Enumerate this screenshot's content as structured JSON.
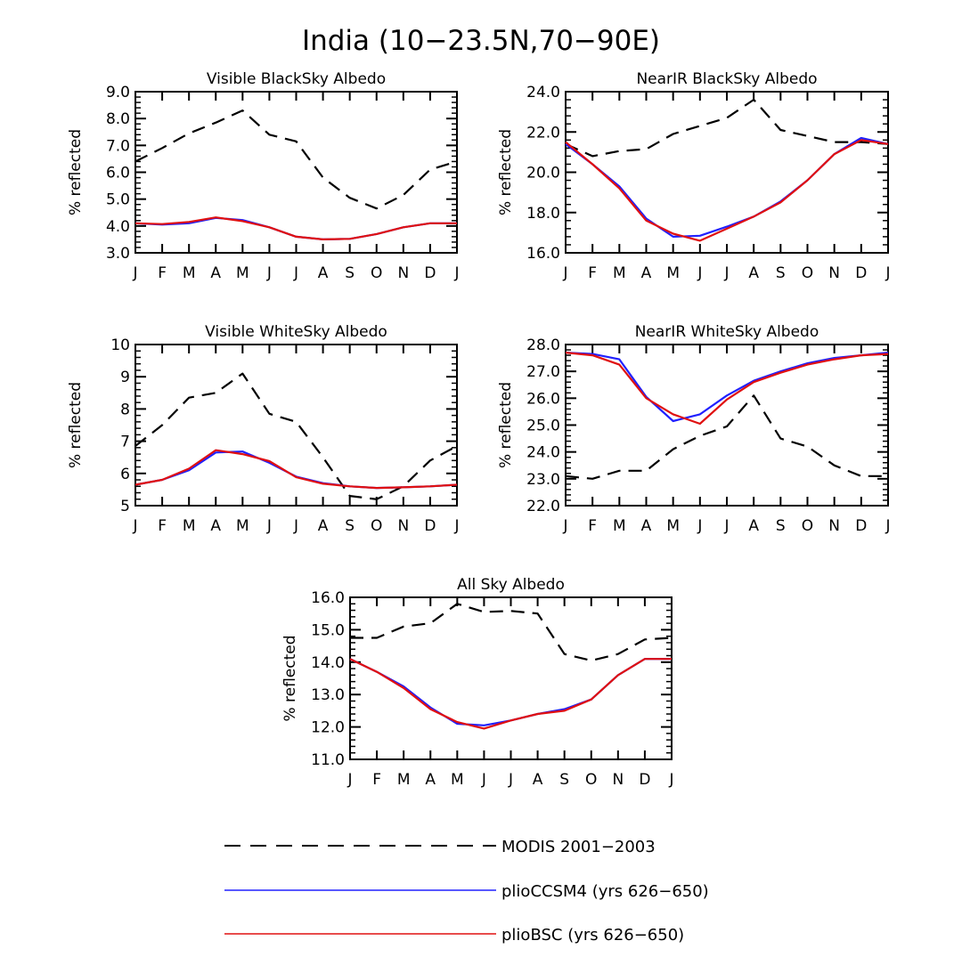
{
  "figure": {
    "title": "India (10−23.5N,70−90E)"
  },
  "colors": {
    "MODIS 2001−2003": "#000000",
    "plioCCSM4 (yrs 626−650)": "#2020ff",
    "plioBSC (yrs 626−650)": "#e01010"
  },
  "legend": [
    {
      "label": "MODIS 2001−2003",
      "style": "dashed",
      "color": "#000000"
    },
    {
      "label": "plioCCSM4 (yrs 626−650)",
      "style": "solid",
      "color": "#2020ff"
    },
    {
      "label": "plioBSC (yrs 626−650)",
      "style": "solid",
      "color": "#e01010"
    }
  ],
  "chart_data": [
    {
      "type": "line",
      "title": "Visible BlackSky Albedo",
      "xlabel": "",
      "ylabel": "% reflected",
      "categories": [
        "J",
        "F",
        "M",
        "A",
        "M",
        "J",
        "J",
        "A",
        "S",
        "O",
        "N",
        "D",
        "J"
      ],
      "ylim": [
        3.0,
        9.0
      ],
      "yticks": [
        "3.0",
        "4.0",
        "5.0",
        "6.0",
        "7.0",
        "8.0",
        "9.0"
      ],
      "series": [
        {
          "name": "MODIS 2001−2003",
          "values": [
            6.4,
            6.9,
            7.45,
            7.85,
            8.3,
            7.4,
            7.15,
            5.8,
            5.05,
            4.65,
            5.15,
            6.1,
            6.4
          ]
        },
        {
          "name": "plioCCSM4 (yrs 626−650)",
          "values": [
            4.1,
            4.05,
            4.1,
            4.3,
            4.22,
            3.95,
            3.6,
            3.5,
            3.52,
            3.7,
            3.95,
            4.1,
            4.1
          ]
        },
        {
          "name": "plioBSC (yrs 626−650)",
          "values": [
            4.1,
            4.07,
            4.15,
            4.32,
            4.18,
            3.95,
            3.6,
            3.5,
            3.52,
            3.7,
            3.95,
            4.1,
            4.1
          ]
        }
      ]
    },
    {
      "type": "line",
      "title": "NearIR BlackSky Albedo",
      "xlabel": "",
      "ylabel": "% reflected",
      "categories": [
        "J",
        "F",
        "M",
        "A",
        "M",
        "J",
        "J",
        "A",
        "S",
        "O",
        "N",
        "D",
        "J"
      ],
      "ylim": [
        16.0,
        24.0
      ],
      "yticks": [
        "16.0",
        "18.0",
        "20.0",
        "22.0",
        "24.0"
      ],
      "series": [
        {
          "name": "MODIS 2001−2003",
          "values": [
            21.4,
            20.8,
            21.05,
            21.15,
            21.9,
            22.3,
            22.7,
            23.6,
            22.1,
            21.8,
            21.5,
            21.5,
            21.4
          ]
        },
        {
          "name": "plioCCSM4 (yrs 626−650)",
          "values": [
            21.4,
            20.4,
            19.3,
            17.7,
            16.8,
            16.85,
            17.3,
            17.8,
            18.55,
            19.6,
            20.9,
            21.7,
            21.4
          ]
        },
        {
          "name": "plioBSC (yrs 626−650)",
          "values": [
            21.5,
            20.4,
            19.2,
            17.6,
            16.95,
            16.6,
            17.2,
            17.8,
            18.5,
            19.6,
            20.9,
            21.6,
            21.4
          ]
        }
      ]
    },
    {
      "type": "line",
      "title": "Visible WhiteSky Albedo",
      "xlabel": "",
      "ylabel": "% reflected",
      "categories": [
        "J",
        "F",
        "M",
        "A",
        "M",
        "J",
        "J",
        "A",
        "S",
        "O",
        "N",
        "D",
        "J"
      ],
      "ylim": [
        5,
        10
      ],
      "yticks": [
        "5",
        "6",
        "7",
        "8",
        "9",
        "10"
      ],
      "series": [
        {
          "name": "MODIS 2001−2003",
          "values": [
            6.85,
            7.5,
            8.35,
            8.5,
            9.1,
            7.85,
            7.6,
            6.5,
            5.3,
            5.2,
            5.6,
            6.4,
            6.85
          ]
        },
        {
          "name": "plioCCSM4 (yrs 626−650)",
          "values": [
            5.65,
            5.8,
            6.1,
            6.65,
            6.68,
            6.33,
            5.9,
            5.7,
            5.6,
            5.55,
            5.57,
            5.6,
            5.65
          ]
        },
        {
          "name": "plioBSC (yrs 626−650)",
          "values": [
            5.65,
            5.8,
            6.15,
            6.72,
            6.6,
            6.38,
            5.88,
            5.68,
            5.6,
            5.55,
            5.57,
            5.6,
            5.65
          ]
        }
      ]
    },
    {
      "type": "line",
      "title": "NearIR WhiteSky Albedo",
      "xlabel": "",
      "ylabel": "% reflected",
      "categories": [
        "J",
        "F",
        "M",
        "A",
        "M",
        "J",
        "J",
        "A",
        "S",
        "O",
        "N",
        "D",
        "J"
      ],
      "ylim": [
        22.0,
        28.0
      ],
      "yticks": [
        "22.0",
        "23.0",
        "24.0",
        "25.0",
        "26.0",
        "27.0",
        "28.0"
      ],
      "series": [
        {
          "name": "MODIS 2001−2003",
          "values": [
            23.1,
            23.0,
            23.3,
            23.3,
            24.1,
            24.6,
            24.95,
            26.1,
            24.5,
            24.2,
            23.5,
            23.1,
            23.1
          ]
        },
        {
          "name": "plioCCSM4 (yrs 626−650)",
          "values": [
            27.7,
            27.65,
            27.45,
            26.05,
            25.15,
            25.4,
            26.1,
            26.65,
            27.0,
            27.3,
            27.5,
            27.6,
            27.7
          ]
        },
        {
          "name": "plioBSC (yrs 626−650)",
          "values": [
            27.7,
            27.6,
            27.25,
            26.0,
            25.4,
            25.05,
            25.95,
            26.6,
            26.95,
            27.25,
            27.45,
            27.6,
            27.65
          ]
        }
      ]
    },
    {
      "type": "line",
      "title": "All Sky Albedo",
      "xlabel": "",
      "ylabel": "% reflected",
      "categories": [
        "J",
        "F",
        "M",
        "A",
        "M",
        "J",
        "J",
        "A",
        "S",
        "O",
        "N",
        "D",
        "J"
      ],
      "ylim": [
        11.0,
        16.0
      ],
      "yticks": [
        "11.0",
        "12.0",
        "13.0",
        "14.0",
        "15.0",
        "16.0"
      ],
      "series": [
        {
          "name": "MODIS 2001−2003",
          "values": [
            14.75,
            14.75,
            15.1,
            15.2,
            15.8,
            15.55,
            15.58,
            15.5,
            14.25,
            14.05,
            14.25,
            14.7,
            14.75
          ]
        },
        {
          "name": "plioCCSM4 (yrs 626−650)",
          "values": [
            14.1,
            13.7,
            13.25,
            12.6,
            12.1,
            12.05,
            12.2,
            12.4,
            12.55,
            12.85,
            13.6,
            14.1,
            14.1
          ]
        },
        {
          "name": "plioBSC (yrs 626−650)",
          "values": [
            14.1,
            13.7,
            13.2,
            12.55,
            12.15,
            11.95,
            12.2,
            12.4,
            12.5,
            12.85,
            13.6,
            14.1,
            14.1
          ]
        }
      ]
    }
  ]
}
